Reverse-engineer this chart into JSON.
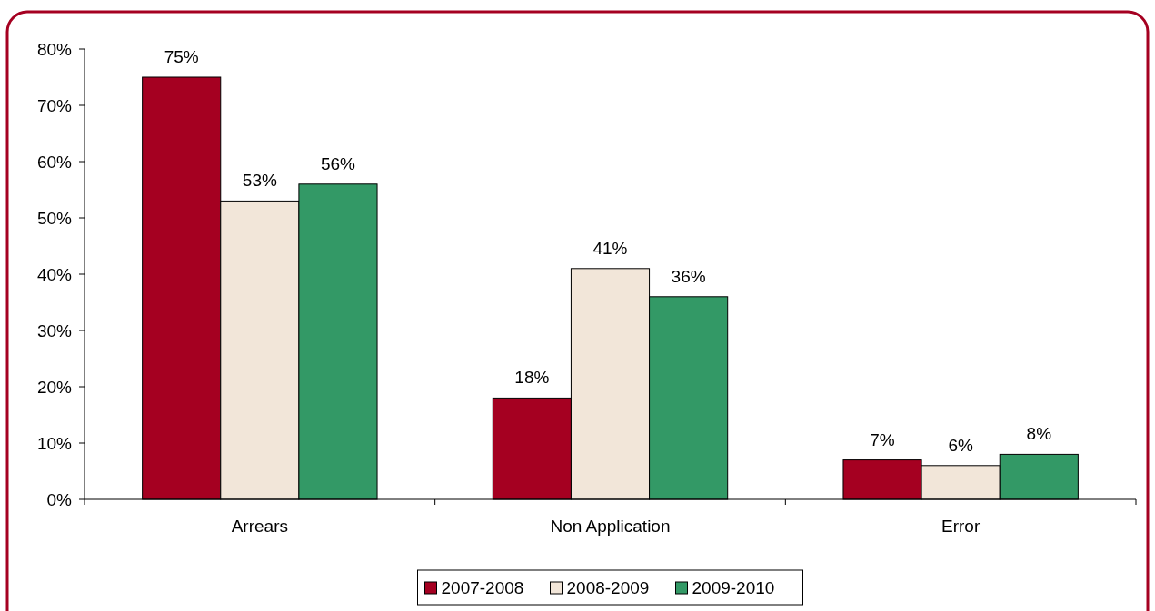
{
  "chart_data": {
    "type": "bar",
    "categories": [
      "Arrears",
      "Non Application",
      "Error"
    ],
    "series": [
      {
        "name": "2007-2008",
        "color": "#a50021",
        "values": [
          75,
          18,
          7
        ],
        "value_labels": [
          "75%",
          "18%",
          "7%"
        ]
      },
      {
        "name": "2008-2009",
        "color": "#f2e6d9",
        "values": [
          53,
          41,
          6
        ],
        "value_labels": [
          "53%",
          "41%",
          "6%"
        ]
      },
      {
        "name": "2009-2010",
        "color": "#339966",
        "values": [
          56,
          36,
          8
        ],
        "value_labels": [
          "56%",
          "36%",
          "8%"
        ]
      }
    ],
    "ylim": [
      0,
      80
    ],
    "yticks": [
      {
        "value": 0,
        "label": "0%"
      },
      {
        "value": 10,
        "label": "10%"
      },
      {
        "value": 20,
        "label": "20%"
      },
      {
        "value": 30,
        "label": "30%"
      },
      {
        "value": 40,
        "label": "40%"
      },
      {
        "value": 50,
        "label": "50%"
      },
      {
        "value": 60,
        "label": "60%"
      },
      {
        "value": 70,
        "label": "70%"
      },
      {
        "value": 80,
        "label": "80%"
      }
    ],
    "grid": false,
    "legend": "bottom"
  }
}
